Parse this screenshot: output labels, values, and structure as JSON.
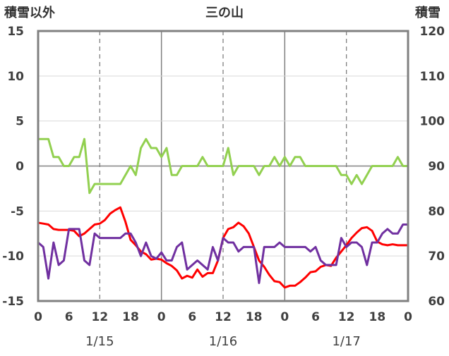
{
  "chart_data": {
    "type": "line",
    "title": "三の山",
    "left_axis_label": "積雪以外",
    "right_axis_label": "積雪",
    "left_ylim": [
      -15,
      15
    ],
    "left_yticks": [
      "15",
      "10",
      "5",
      "0",
      "-5",
      "-10",
      "-15"
    ],
    "right_ylim": [
      60,
      120
    ],
    "right_yticks": [
      "120",
      "110",
      "100",
      "90",
      "80",
      "70",
      "60"
    ],
    "xlim": [
      0,
      72
    ],
    "xtick_labels": [
      "0",
      "6",
      "12",
      "18",
      "0",
      "6",
      "12",
      "18",
      "0",
      "6",
      "12",
      "18",
      "0"
    ],
    "date_labels": [
      {
        "text": "1/15",
        "x": 12
      },
      {
        "text": "1/16",
        "x": 36
      },
      {
        "text": "1/17",
        "x": 60
      }
    ],
    "grid": "vertical lines at hourly ticks 12, 36, 60 (dashed) and day boundaries 24, 48 (solid)",
    "series": [
      {
        "color": "#ff0000",
        "axis": "left",
        "values": [
          -6.3,
          -6.4,
          -6.5,
          -7.0,
          -7.1,
          -7.1,
          -7.1,
          -7.2,
          -7.8,
          -7.5,
          -7.0,
          -6.5,
          -6.4,
          -6.0,
          -5.3,
          -4.9,
          -4.6,
          -6.2,
          -8.2,
          -8.8,
          -9.5,
          -9.8,
          -10.4,
          -10.3,
          -10.4,
          -10.8,
          -11.1,
          -11.6,
          -12.5,
          -12.2,
          -12.4,
          -11.5,
          -12.3,
          -11.9,
          -11.9,
          -10.5,
          -8.0,
          -7.0,
          -6.8,
          -6.3,
          -6.7,
          -7.5,
          -9.0,
          -10.5,
          -11.2,
          -12.1,
          -12.8,
          -12.9,
          -13.5,
          -13.3,
          -13.3,
          -12.9,
          -12.4,
          -11.8,
          -11.7,
          -11.2,
          -11.0,
          -11.1,
          -10.2,
          -9.5,
          -8.8,
          -8.0,
          -7.4,
          -6.9,
          -6.8,
          -7.2,
          -8.4,
          -8.7,
          -8.8,
          -8.7,
          -8.8,
          -8.8,
          -8.8
        ]
      },
      {
        "color": "#7030a0",
        "axis": "left",
        "values": [
          -8.5,
          -9.0,
          -12.5,
          -8.5,
          -11.0,
          -10.5,
          -7.0,
          -7.0,
          -7.0,
          -10.5,
          -11.0,
          -7.5,
          -8.0,
          -8.0,
          -8.0,
          -8.0,
          -8.0,
          -7.5,
          -7.5,
          -8.5,
          -10.0,
          -8.5,
          -10.0,
          -10.3,
          -9.6,
          -10.5,
          -10.5,
          -9.0,
          -8.5,
          -11.5,
          -11.0,
          -10.5,
          -11.0,
          -11.5,
          -9.0,
          -10.5,
          -8.0,
          -8.5,
          -8.5,
          -9.5,
          -9.0,
          -9.0,
          -9.0,
          -13.0,
          -9.0,
          -9.0,
          -9.0,
          -8.5,
          -9.0,
          -9.0,
          -9.0,
          -9.0,
          -9.0,
          -9.5,
          -9.0,
          -10.5,
          -11.0,
          -11.0,
          -11.0,
          -8.0,
          -9.0,
          -8.5,
          -8.5,
          -9.0,
          -11.0,
          -8.5,
          -8.5,
          -7.5,
          -7.0,
          -7.5,
          -7.5,
          -6.5,
          -6.5
        ]
      },
      {
        "color": "#92d050",
        "axis": "left",
        "values": [
          3,
          3,
          3,
          1,
          1,
          0,
          0,
          1,
          1,
          3,
          -3,
          -2,
          -2,
          -2,
          -2,
          -2,
          -2,
          -1,
          0,
          -1,
          2,
          3,
          2,
          2,
          1,
          2,
          -1,
          -1,
          0,
          0,
          0,
          0,
          1,
          0,
          0,
          0,
          0,
          2,
          -1,
          0,
          0,
          0,
          0,
          -1,
          0,
          0,
          1,
          0,
          1,
          0,
          1,
          1,
          0,
          0,
          0,
          0,
          0,
          0,
          0,
          -1,
          -1,
          -2,
          -1,
          -2,
          -1,
          0,
          0,
          0,
          0,
          0,
          1,
          0,
          0
        ]
      }
    ]
  }
}
